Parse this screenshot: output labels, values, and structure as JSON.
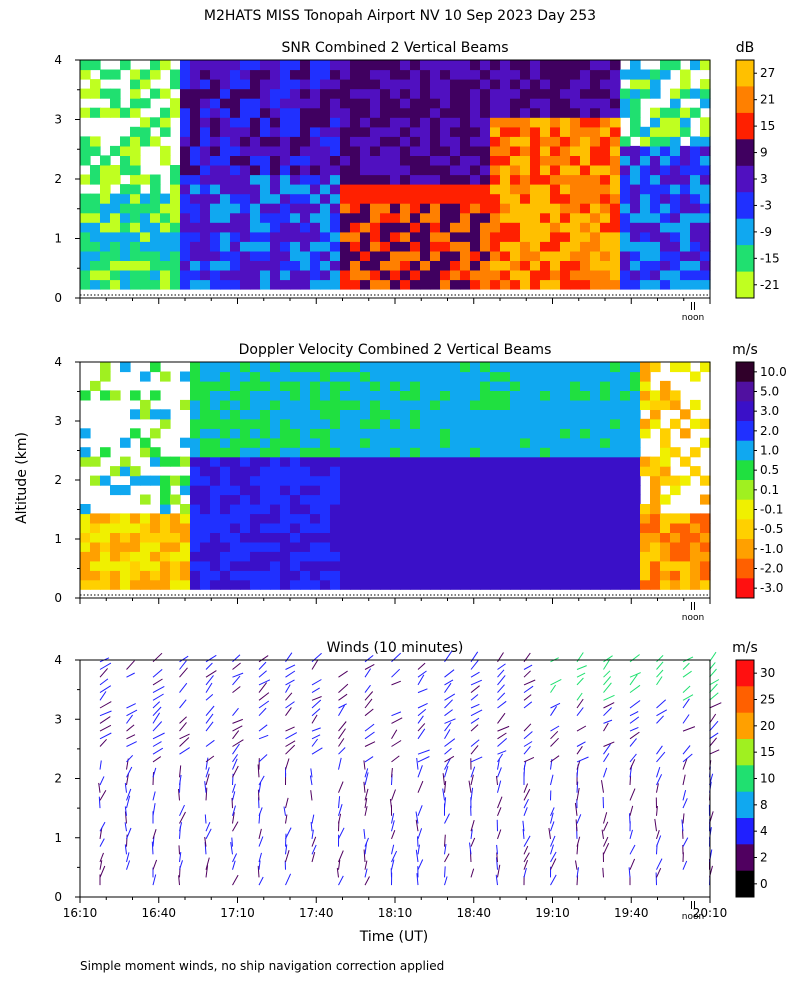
{
  "title": "M2HATS MISS Tonopah Airport NV  10 Sep 2023 Day 253",
  "ylabel": "Altitude (km)",
  "xlabel": "Time (UT)",
  "noon_label": "noon",
  "footnote": "Simple moment winds, no ship navigation correction applied",
  "chart_data": [
    {
      "type": "heatmap",
      "title": "SNR Combined 2 Vertical Beams",
      "unit": "dB",
      "ylim": [
        0,
        4
      ],
      "yticks": [
        "0",
        "1",
        "2",
        "3",
        "4"
      ],
      "colorbar_labels": [
        "27",
        "21",
        "15",
        "9",
        "3",
        "-3",
        "-9",
        "-15",
        "-21"
      ],
      "colorbar_colors": [
        "#ffc000",
        "#ff8000",
        "#ff2000",
        "#400060",
        "#5010c0",
        "#2030ff",
        "#10a8f0",
        "#20e070",
        "#c0ff20"
      ]
    },
    {
      "type": "heatmap",
      "title": "Doppler Velocity Combined 2 Vertical Beams",
      "unit": "m/s",
      "ylim": [
        0,
        4
      ],
      "yticks": [
        "0",
        "1",
        "2",
        "3",
        "4"
      ],
      "colorbar_labels": [
        "10.0",
        "5.0",
        "3.0",
        "2.0",
        "1.0",
        "0.5",
        "0.1",
        "-0.1",
        "-0.5",
        "-1.0",
        "-2.0",
        "-3.0"
      ],
      "colorbar_colors": [
        "#30002a",
        "#5010a0",
        "#3a10c8",
        "#2030ff",
        "#10a8f0",
        "#20e040",
        "#a0f020",
        "#f0f000",
        "#ffd000",
        "#ffa000",
        "#ff6000",
        "#ff1010"
      ]
    },
    {
      "type": "scatter",
      "title": "Winds (10 minutes)",
      "unit": "m/s",
      "ylim": [
        0,
        4
      ],
      "yticks": [
        "0",
        "1",
        "2",
        "3",
        "4"
      ],
      "xticks": [
        "16:10",
        "16:40",
        "17:10",
        "17:40",
        "18:10",
        "18:40",
        "19:10",
        "19:40",
        "20:10"
      ],
      "colorbar_labels": [
        "30",
        "25",
        "20",
        "15",
        "10",
        "8",
        "4",
        "2",
        "0"
      ],
      "colorbar_colors": [
        "#ff1010",
        "#ff6000",
        "#ffa000",
        "#a0f020",
        "#20e070",
        "#10a8f0",
        "#2020ff",
        "#500060",
        "#000000"
      ]
    }
  ]
}
